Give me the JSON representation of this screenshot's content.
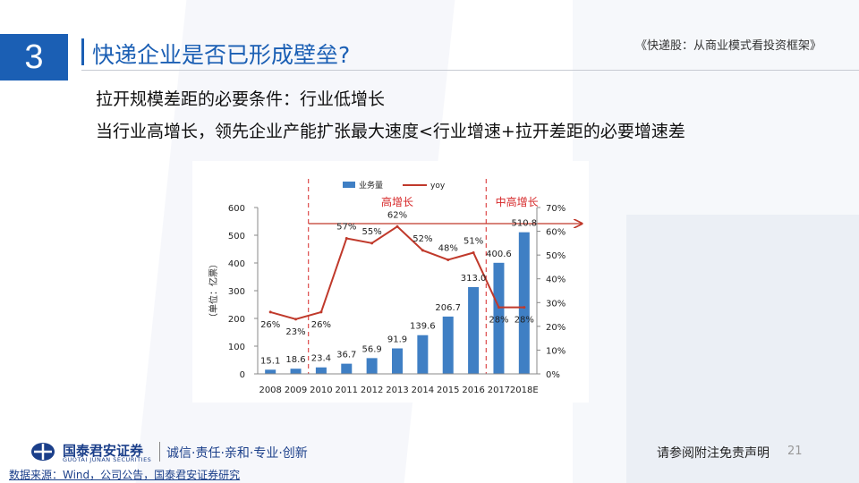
{
  "slide": {
    "section_number": "3",
    "title": "快递企业是否已形成壁垒?",
    "header_ref": "《快递股：从商业模式看投资框架》",
    "line1": "拉开规模差距的必要条件：行业低增长",
    "line2": "当行业高增长，领先企业产能扩张最大速度<行业增速+拉开差距的必要增速差"
  },
  "footer": {
    "brand": "国泰君安证券",
    "brand_en": "GUOTAI JUNAN SECURITIES",
    "slogan": "诚信·责任·亲和·专业·创新",
    "disclaimer": "请参阅附注免责声明",
    "page": "21",
    "source": "数据来源：Wind，公司公告，国泰君安证券研究"
  },
  "chart_data": {
    "type": "bar",
    "categories": [
      "2008",
      "2009",
      "2010",
      "2011",
      "2012",
      "2013",
      "2014",
      "2015",
      "2016",
      "2017",
      "2018E"
    ],
    "series": [
      {
        "name": "业务量",
        "type": "bar",
        "values": [
          15.1,
          18.6,
          23.4,
          36.7,
          56.9,
          91.9,
          139.6,
          206.7,
          313.0,
          400.6,
          510.8
        ],
        "labels": [
          "15.1",
          "18.6",
          "23.4",
          "36.7",
          "56.9",
          "91.9",
          "139.6",
          "206.7",
          "313.0",
          "400.6",
          "510.8"
        ]
      },
      {
        "name": "yoy",
        "type": "line",
        "axis": "right",
        "values": [
          26,
          23,
          26,
          57,
          55,
          62,
          52,
          48,
          51,
          28,
          28
        ],
        "labels": [
          "26%",
          "23%",
          "26%",
          "57%",
          "55%",
          "62%",
          "52%",
          "48%",
          "51%",
          "28%",
          "28%"
        ]
      }
    ],
    "ylabel": "（单位：亿票）",
    "ylim": [
      0,
      600
    ],
    "yticks": [
      "0",
      "100",
      "200",
      "300",
      "400",
      "500",
      "600"
    ],
    "y2lim": [
      0,
      70
    ],
    "y2ticks": [
      "0%",
      "10%",
      "20%",
      "30%",
      "40%",
      "50%",
      "60%",
      "70%"
    ],
    "annotations": [
      {
        "text": "高增长",
        "from": "2010",
        "to": "2016"
      },
      {
        "text": "中高增长",
        "from": "2017",
        "to": "2018E"
      }
    ],
    "legend_position": "top",
    "colors": {
      "bar": "#3f7fc4",
      "line": "#c0392b",
      "annotation": "#d62728"
    }
  }
}
